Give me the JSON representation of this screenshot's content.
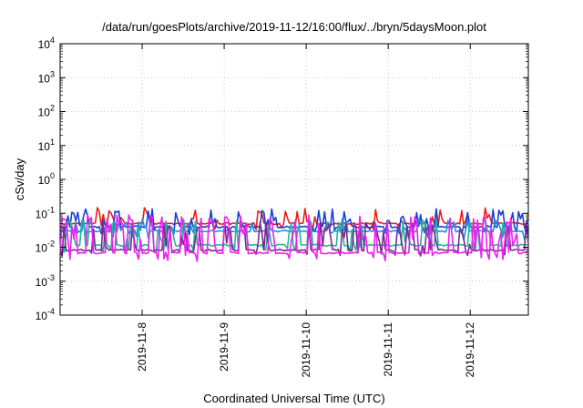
{
  "chart_data": {
    "type": "line",
    "title": "/data/run/goesPlots/archive/2019-11-12/16:00/flux/../bryn/5daysMoon.plot",
    "xlabel": "Coordinated Universal Time (UTC)",
    "ylabel": "cSv/day",
    "yscale": "log",
    "ylim": [
      0.0001,
      10000
    ],
    "y_ticks": [
      {
        "value": 0.0001,
        "base": "10",
        "exp": "-4"
      },
      {
        "value": 0.001,
        "base": "10",
        "exp": "-3"
      },
      {
        "value": 0.01,
        "base": "10",
        "exp": "-2"
      },
      {
        "value": 0.1,
        "base": "10",
        "exp": "-1"
      },
      {
        "value": 1,
        "base": "10",
        "exp": "0"
      },
      {
        "value": 10,
        "base": "10",
        "exp": "1"
      },
      {
        "value": 100,
        "base": "10",
        "exp": "2"
      },
      {
        "value": 1000,
        "base": "10",
        "exp": "3"
      },
      {
        "value": 10000,
        "base": "10",
        "exp": "4"
      }
    ],
    "xlim": [
      "2019-11-07 00:00",
      "2019-11-12 17:00"
    ],
    "x_ticks": [
      "2019-11-8",
      "2019-11-9",
      "2019-11-10",
      "2019-11-11",
      "2019-11-12"
    ],
    "grid": true,
    "legend": "none",
    "series": [
      {
        "color": "#e8201a",
        "baseline": 0.05,
        "spike_low": 0.038,
        "spike_high": 0.13,
        "spike_rate": 0.3
      },
      {
        "color": "#1a3fd9",
        "baseline": 0.04,
        "spike_low": 0.028,
        "spike_high": 0.12,
        "spike_rate": 0.35
      },
      {
        "color": "#1e8fe6",
        "baseline": 0.03,
        "spike_low": 0.018,
        "spike_high": 0.06,
        "spike_rate": 0.3
      },
      {
        "color": "#1fb89a",
        "baseline": 0.0115,
        "spike_low": 0.008,
        "spike_high": 0.06,
        "spike_rate": 0.4
      },
      {
        "color": "#7a2a8e",
        "baseline": 0.0082,
        "spike_low": 0.006,
        "spike_high": 0.05,
        "spike_rate": 0.4
      },
      {
        "color": "#f01ff0",
        "baseline": 0.0068,
        "spike_low": 0.0045,
        "spike_high": 0.08,
        "spike_rate": 0.45
      }
    ]
  }
}
